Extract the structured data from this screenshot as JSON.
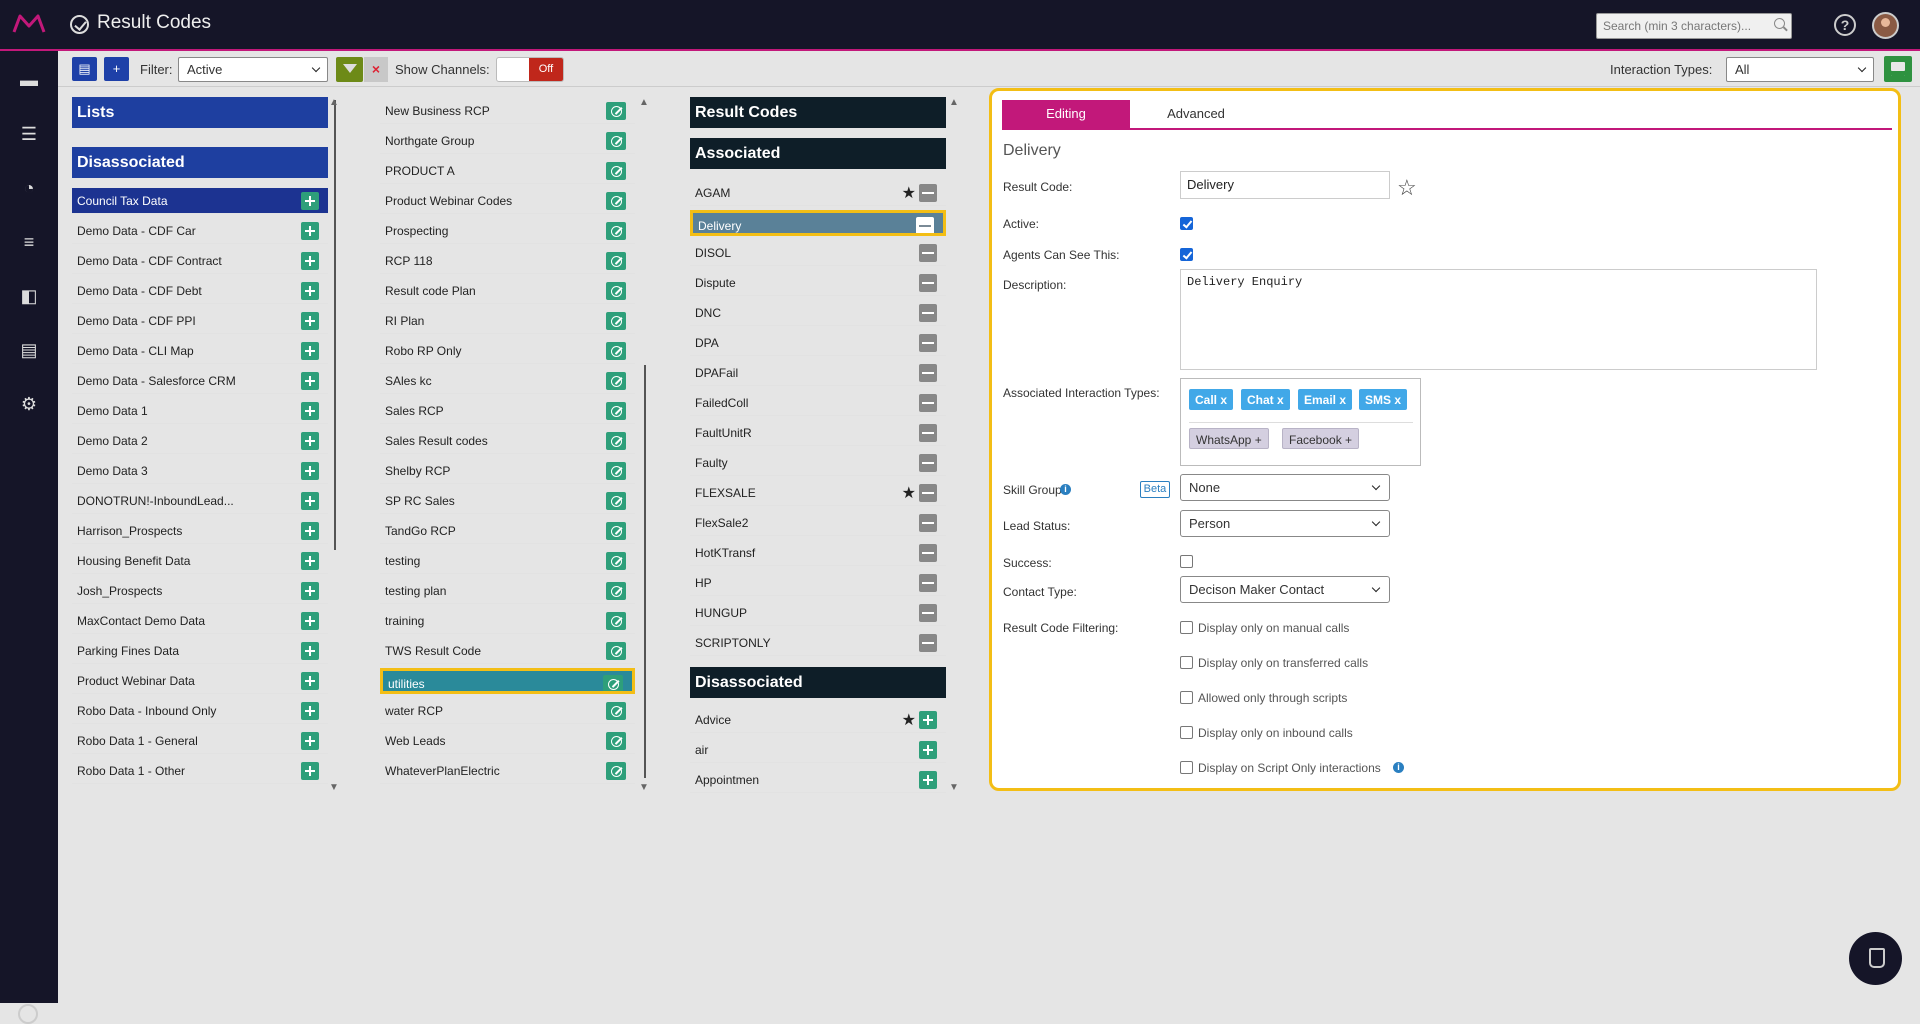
{
  "header": {
    "app_title": "Result Codes",
    "search_placeholder": "Search (min 3 characters)..."
  },
  "toolbar": {
    "filter_label": "Filter:",
    "filter_value": "Active",
    "show_channels_label": "Show Channels:",
    "show_channels_toggle": "Off",
    "interaction_types_label": "Interaction Types:",
    "interaction_types_value": "All"
  },
  "lists_column": {
    "header_lists": "Lists",
    "header_disassociated": "Disassociated",
    "items": [
      "Council Tax Data",
      "Demo Data - CDF Car",
      "Demo Data - CDF Contract",
      "Demo Data - CDF Debt",
      "Demo Data - CDF PPI",
      "Demo Data - CLI Map",
      "Demo Data - Salesforce CRM",
      "Demo Data 1",
      "Demo Data 2",
      "Demo Data 3",
      "DONOTRUN!-InboundLead...",
      "Harrison_Prospects",
      "Housing Benefit Data",
      "Josh_Prospects",
      "MaxContact Demo Data",
      "Parking Fines Data",
      "Product Webinar Data",
      "Robo Data - Inbound Only",
      "Robo Data 1 - General",
      "Robo Data 1 - Other"
    ]
  },
  "plans_column": {
    "items": [
      "New Business RCP",
      "Northgate Group",
      "PRODUCT A",
      "Product Webinar Codes",
      "Prospecting",
      "RCP 118",
      "Result code Plan",
      "RI Plan",
      "Robo RP Only",
      "SAles kc",
      "Sales RCP",
      "Sales Result codes",
      "Shelby RCP",
      "SP RC Sales",
      "TandGo RCP",
      "testing",
      "testing plan",
      "training",
      "TWS Result Code",
      "utilities",
      "water RCP",
      "Web Leads",
      "WhateverPlanElectric"
    ]
  },
  "result_codes_column": {
    "header": "Result Codes",
    "header_associated": "Associated",
    "associated": [
      "AGAM",
      "Delivery",
      "DISOL",
      "Dispute",
      "DNC",
      "DPA",
      "DPAFail",
      "FailedColl",
      "FaultUnitR",
      "Faulty",
      "FLEXSALE",
      "FlexSale2",
      "HotKTransf",
      "HP",
      "HUNGUP",
      "SCRIPTONLY"
    ],
    "header_disassociated": "Disassociated",
    "disassociated": [
      "Advice",
      "air",
      "Appointmen"
    ]
  },
  "editor": {
    "tab_editing": "Editing",
    "tab_advanced": "Advanced",
    "title": "Delivery",
    "result_code_label": "Result Code:",
    "result_code_value": "Delivery",
    "active_label": "Active:",
    "agents_label": "Agents Can See This:",
    "description_label": "Description:",
    "description_value": "Delivery Enquiry",
    "assoc_types_label": "Associated Interaction Types:",
    "tags_selected": [
      "Call x",
      "Chat x",
      "Email x",
      "SMS x"
    ],
    "tags_available": [
      "WhatsApp +",
      "Facebook +"
    ],
    "skill_group_label": "Skill Group:",
    "beta_label": "Beta",
    "skill_group_value": "None",
    "lead_status_label": "Lead Status:",
    "lead_status_value": "Person",
    "success_label": "Success:",
    "contact_type_label": "Contact Type:",
    "contact_type_value": "Decison Maker Contact",
    "filtering_label": "Result Code Filtering:",
    "filtering_options": [
      "Display only on manual calls",
      "Display only on transferred calls",
      "Allowed only through scripts",
      "Display only on inbound calls",
      "Display on Script Only interactions"
    ]
  }
}
